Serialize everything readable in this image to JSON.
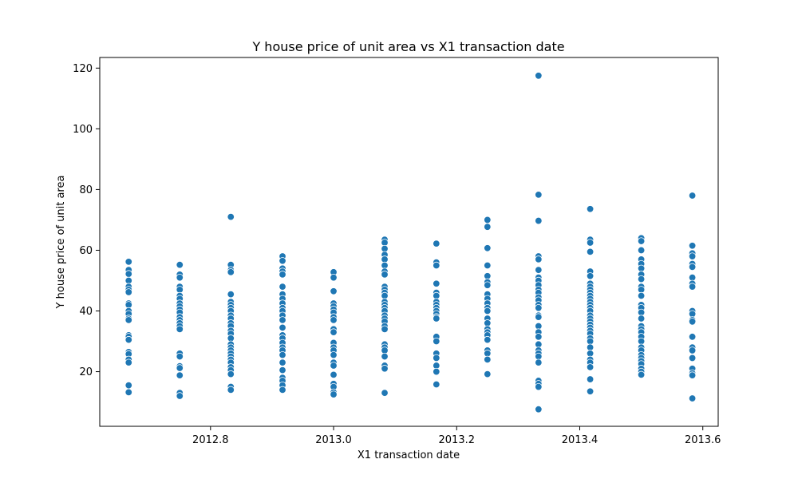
{
  "chart_data": {
    "type": "scatter",
    "title": "Y house price of unit area vs X1 transaction date",
    "xlabel": "X1 transaction date",
    "ylabel": "Y house price of unit area",
    "xlim": [
      2012.62,
      2013.625
    ],
    "ylim": [
      2.0,
      123.5
    ],
    "xticks": [
      2012.8,
      2013.0,
      2013.2,
      2013.4,
      2013.6
    ],
    "xtick_labels": [
      "2012.8",
      "2013.0",
      "2013.2",
      "2013.4",
      "2013.6"
    ],
    "yticks": [
      20,
      40,
      60,
      80,
      100,
      120
    ],
    "ytick_labels": [
      "20",
      "40",
      "60",
      "80",
      "100",
      "120"
    ],
    "grid": false,
    "legend": "none",
    "marker_color": "#1f77b4",
    "series": [
      {
        "points": [
          [
            2012.667,
            56.2
          ],
          [
            2012.667,
            53.5
          ],
          [
            2012.667,
            52.2
          ],
          [
            2012.667,
            50.0
          ],
          [
            2012.667,
            48.0
          ],
          [
            2012.667,
            47.0
          ],
          [
            2012.667,
            46.2
          ],
          [
            2012.667,
            42.5
          ],
          [
            2012.667,
            42.0
          ],
          [
            2012.667,
            40.0
          ],
          [
            2012.667,
            39.0
          ],
          [
            2012.667,
            37.5
          ],
          [
            2012.667,
            37.0
          ],
          [
            2012.667,
            32.0
          ],
          [
            2012.667,
            31.5
          ],
          [
            2012.667,
            30.5
          ],
          [
            2012.667,
            26.5
          ],
          [
            2012.667,
            25.8
          ],
          [
            2012.667,
            24.0
          ],
          [
            2012.667,
            23.0
          ],
          [
            2012.667,
            15.5
          ],
          [
            2012.667,
            13.2
          ],
          [
            2012.75,
            55.2
          ],
          [
            2012.75,
            52.0
          ],
          [
            2012.75,
            51.0
          ],
          [
            2012.75,
            48.0
          ],
          [
            2012.75,
            47.0
          ],
          [
            2012.75,
            45.0
          ],
          [
            2012.75,
            44.0
          ],
          [
            2012.75,
            42.5
          ],
          [
            2012.75,
            41.5
          ],
          [
            2012.75,
            40.5
          ],
          [
            2012.75,
            39.5
          ],
          [
            2012.75,
            38.0
          ],
          [
            2012.75,
            37.0
          ],
          [
            2012.75,
            36.0
          ],
          [
            2012.75,
            35.0
          ],
          [
            2012.75,
            34.0
          ],
          [
            2012.75,
            26.0
          ],
          [
            2012.75,
            25.0
          ],
          [
            2012.75,
            21.8
          ],
          [
            2012.75,
            21.2
          ],
          [
            2012.75,
            18.8
          ],
          [
            2012.75,
            13.0
          ],
          [
            2012.75,
            12.0
          ],
          [
            2012.833,
            71.0
          ],
          [
            2012.833,
            55.2
          ],
          [
            2012.833,
            53.5
          ],
          [
            2012.833,
            52.8
          ],
          [
            2012.833,
            45.5
          ],
          [
            2012.833,
            43.0
          ],
          [
            2012.833,
            42.0
          ],
          [
            2012.833,
            41.0
          ],
          [
            2012.833,
            40.0
          ],
          [
            2012.833,
            38.5
          ],
          [
            2012.833,
            37.5
          ],
          [
            2012.833,
            36.0
          ],
          [
            2012.833,
            35.0
          ],
          [
            2012.833,
            33.5
          ],
          [
            2012.833,
            32.5
          ],
          [
            2012.833,
            31.0
          ],
          [
            2012.833,
            29.0
          ],
          [
            2012.833,
            28.0
          ],
          [
            2012.833,
            27.0
          ],
          [
            2012.833,
            26.0
          ],
          [
            2012.833,
            25.0
          ],
          [
            2012.833,
            24.0
          ],
          [
            2012.833,
            23.0
          ],
          [
            2012.833,
            21.5
          ],
          [
            2012.833,
            20.5
          ],
          [
            2012.833,
            19.2
          ],
          [
            2012.833,
            15.0
          ],
          [
            2012.833,
            14.0
          ],
          [
            2012.917,
            58.0
          ],
          [
            2012.917,
            56.5
          ],
          [
            2012.917,
            54.0
          ],
          [
            2012.917,
            53.0
          ],
          [
            2012.917,
            52.0
          ],
          [
            2012.917,
            48.0
          ],
          [
            2012.917,
            45.5
          ],
          [
            2012.917,
            44.0
          ],
          [
            2012.917,
            42.5
          ],
          [
            2012.917,
            41.0
          ],
          [
            2012.917,
            40.0
          ],
          [
            2012.917,
            38.5
          ],
          [
            2012.917,
            37.0
          ],
          [
            2012.917,
            34.5
          ],
          [
            2012.917,
            32.0
          ],
          [
            2012.917,
            31.0
          ],
          [
            2012.917,
            29.5
          ],
          [
            2012.917,
            28.0
          ],
          [
            2012.917,
            27.0
          ],
          [
            2012.917,
            25.5
          ],
          [
            2012.917,
            23.0
          ],
          [
            2012.917,
            20.5
          ],
          [
            2012.917,
            18.0
          ],
          [
            2012.917,
            17.0
          ],
          [
            2012.917,
            15.5
          ],
          [
            2012.917,
            14.0
          ],
          [
            2013.0,
            52.8
          ],
          [
            2013.0,
            51.0
          ],
          [
            2013.0,
            46.5
          ],
          [
            2013.0,
            42.5
          ],
          [
            2013.0,
            41.5
          ],
          [
            2013.0,
            40.5
          ],
          [
            2013.0,
            39.5
          ],
          [
            2013.0,
            38.0
          ],
          [
            2013.0,
            37.0
          ],
          [
            2013.0,
            34.0
          ],
          [
            2013.0,
            33.0
          ],
          [
            2013.0,
            29.5
          ],
          [
            2013.0,
            28.0
          ],
          [
            2013.0,
            27.0
          ],
          [
            2013.0,
            25.5
          ],
          [
            2013.0,
            23.0
          ],
          [
            2013.0,
            22.0
          ],
          [
            2013.0,
            19.0
          ],
          [
            2013.0,
            16.0
          ],
          [
            2013.0,
            15.0
          ],
          [
            2013.0,
            13.2
          ],
          [
            2013.0,
            12.5
          ],
          [
            2013.083,
            63.5
          ],
          [
            2013.083,
            62.5
          ],
          [
            2013.083,
            60.5
          ],
          [
            2013.083,
            58.5
          ],
          [
            2013.083,
            57.0
          ],
          [
            2013.083,
            55.0
          ],
          [
            2013.083,
            53.0
          ],
          [
            2013.083,
            52.0
          ],
          [
            2013.083,
            48.0
          ],
          [
            2013.083,
            47.0
          ],
          [
            2013.083,
            46.0
          ],
          [
            2013.083,
            45.0
          ],
          [
            2013.083,
            43.0
          ],
          [
            2013.083,
            42.0
          ],
          [
            2013.083,
            41.0
          ],
          [
            2013.083,
            40.0
          ],
          [
            2013.083,
            38.5
          ],
          [
            2013.083,
            37.5
          ],
          [
            2013.083,
            36.5
          ],
          [
            2013.083,
            35.0
          ],
          [
            2013.083,
            34.0
          ],
          [
            2013.083,
            29.0
          ],
          [
            2013.083,
            28.0
          ],
          [
            2013.083,
            27.0
          ],
          [
            2013.083,
            25.0
          ],
          [
            2013.083,
            22.0
          ],
          [
            2013.083,
            21.0
          ],
          [
            2013.083,
            13.0
          ],
          [
            2013.167,
            62.2
          ],
          [
            2013.167,
            56.0
          ],
          [
            2013.167,
            55.0
          ],
          [
            2013.167,
            49.0
          ],
          [
            2013.167,
            46.0
          ],
          [
            2013.167,
            45.0
          ],
          [
            2013.167,
            43.0
          ],
          [
            2013.167,
            42.0
          ],
          [
            2013.167,
            41.0
          ],
          [
            2013.167,
            40.0
          ],
          [
            2013.167,
            39.0
          ],
          [
            2013.167,
            38.0
          ],
          [
            2013.167,
            37.5
          ],
          [
            2013.167,
            31.5
          ],
          [
            2013.167,
            30.0
          ],
          [
            2013.167,
            26.0
          ],
          [
            2013.167,
            24.5
          ],
          [
            2013.167,
            22.0
          ],
          [
            2013.167,
            20.0
          ],
          [
            2013.167,
            15.8
          ],
          [
            2013.25,
            70.0
          ],
          [
            2013.25,
            67.7
          ],
          [
            2013.25,
            60.7
          ],
          [
            2013.25,
            55.0
          ],
          [
            2013.25,
            51.5
          ],
          [
            2013.25,
            49.5
          ],
          [
            2013.25,
            48.5
          ],
          [
            2013.25,
            45.5
          ],
          [
            2013.25,
            44.0
          ],
          [
            2013.25,
            42.5
          ],
          [
            2013.25,
            41.0
          ],
          [
            2013.25,
            40.0
          ],
          [
            2013.25,
            37.5
          ],
          [
            2013.25,
            36.0
          ],
          [
            2013.25,
            34.0
          ],
          [
            2013.25,
            33.0
          ],
          [
            2013.25,
            32.0
          ],
          [
            2013.25,
            30.5
          ],
          [
            2013.25,
            27.0
          ],
          [
            2013.25,
            26.0
          ],
          [
            2013.25,
            24.0
          ],
          [
            2013.25,
            19.2
          ],
          [
            2013.333,
            117.5
          ],
          [
            2013.333,
            78.3
          ],
          [
            2013.333,
            69.7
          ],
          [
            2013.333,
            58.0
          ],
          [
            2013.333,
            57.0
          ],
          [
            2013.333,
            53.5
          ],
          [
            2013.333,
            51.0
          ],
          [
            2013.333,
            50.0
          ],
          [
            2013.333,
            48.5
          ],
          [
            2013.333,
            47.0
          ],
          [
            2013.333,
            46.0
          ],
          [
            2013.333,
            44.5
          ],
          [
            2013.333,
            43.5
          ],
          [
            2013.333,
            42.0
          ],
          [
            2013.333,
            41.0
          ],
          [
            2013.333,
            38.5
          ],
          [
            2013.333,
            38.0
          ],
          [
            2013.333,
            35.0
          ],
          [
            2013.333,
            33.0
          ],
          [
            2013.333,
            31.5
          ],
          [
            2013.333,
            29.0
          ],
          [
            2013.333,
            27.0
          ],
          [
            2013.333,
            26.0
          ],
          [
            2013.333,
            25.0
          ],
          [
            2013.333,
            23.0
          ],
          [
            2013.333,
            17.0
          ],
          [
            2013.333,
            16.0
          ],
          [
            2013.333,
            15.0
          ],
          [
            2013.333,
            7.6
          ],
          [
            2013.417,
            73.6
          ],
          [
            2013.417,
            63.5
          ],
          [
            2013.417,
            62.5
          ],
          [
            2013.417,
            59.5
          ],
          [
            2013.417,
            53.0
          ],
          [
            2013.417,
            51.5
          ],
          [
            2013.417,
            49.0
          ],
          [
            2013.417,
            48.0
          ],
          [
            2013.417,
            47.0
          ],
          [
            2013.417,
            46.0
          ],
          [
            2013.417,
            45.0
          ],
          [
            2013.417,
            44.0
          ],
          [
            2013.417,
            43.0
          ],
          [
            2013.417,
            42.0
          ],
          [
            2013.417,
            41.0
          ],
          [
            2013.417,
            40.0
          ],
          [
            2013.417,
            38.5
          ],
          [
            2013.417,
            37.5
          ],
          [
            2013.417,
            36.5
          ],
          [
            2013.417,
            35.5
          ],
          [
            2013.417,
            34.5
          ],
          [
            2013.417,
            33.5
          ],
          [
            2013.417,
            32.5
          ],
          [
            2013.417,
            31.0
          ],
          [
            2013.417,
            30.0
          ],
          [
            2013.417,
            28.0
          ],
          [
            2013.417,
            26.0
          ],
          [
            2013.417,
            24.0
          ],
          [
            2013.417,
            23.0
          ],
          [
            2013.417,
            21.5
          ],
          [
            2013.417,
            17.5
          ],
          [
            2013.417,
            13.5
          ],
          [
            2013.5,
            64.0
          ],
          [
            2013.5,
            63.0
          ],
          [
            2013.5,
            60.0
          ],
          [
            2013.5,
            57.0
          ],
          [
            2013.5,
            55.5
          ],
          [
            2013.5,
            54.0
          ],
          [
            2013.5,
            52.0
          ],
          [
            2013.5,
            50.5
          ],
          [
            2013.5,
            48.0
          ],
          [
            2013.5,
            47.0
          ],
          [
            2013.5,
            45.0
          ],
          [
            2013.5,
            42.0
          ],
          [
            2013.5,
            41.0
          ],
          [
            2013.5,
            39.5
          ],
          [
            2013.5,
            37.5
          ],
          [
            2013.5,
            35.0
          ],
          [
            2013.5,
            34.0
          ],
          [
            2013.5,
            33.0
          ],
          [
            2013.5,
            31.5
          ],
          [
            2013.5,
            30.0
          ],
          [
            2013.5,
            28.0
          ],
          [
            2013.5,
            27.0
          ],
          [
            2013.5,
            25.5
          ],
          [
            2013.5,
            24.5
          ],
          [
            2013.5,
            23.5
          ],
          [
            2013.5,
            22.5
          ],
          [
            2013.5,
            21.0
          ],
          [
            2013.5,
            20.0
          ],
          [
            2013.5,
            19.0
          ],
          [
            2013.583,
            78.0
          ],
          [
            2013.583,
            61.5
          ],
          [
            2013.583,
            59.0
          ],
          [
            2013.583,
            58.0
          ],
          [
            2013.583,
            55.5
          ],
          [
            2013.583,
            54.5
          ],
          [
            2013.583,
            51.0
          ],
          [
            2013.583,
            49.0
          ],
          [
            2013.583,
            48.0
          ],
          [
            2013.583,
            40.0
          ],
          [
            2013.583,
            39.0
          ],
          [
            2013.583,
            37.0
          ],
          [
            2013.583,
            36.5
          ],
          [
            2013.583,
            31.5
          ],
          [
            2013.583,
            28.0
          ],
          [
            2013.583,
            27.0
          ],
          [
            2013.583,
            24.5
          ],
          [
            2013.583,
            21.0
          ],
          [
            2013.583,
            19.5
          ],
          [
            2013.583,
            18.8
          ],
          [
            2013.583,
            11.2
          ]
        ]
      }
    ]
  }
}
